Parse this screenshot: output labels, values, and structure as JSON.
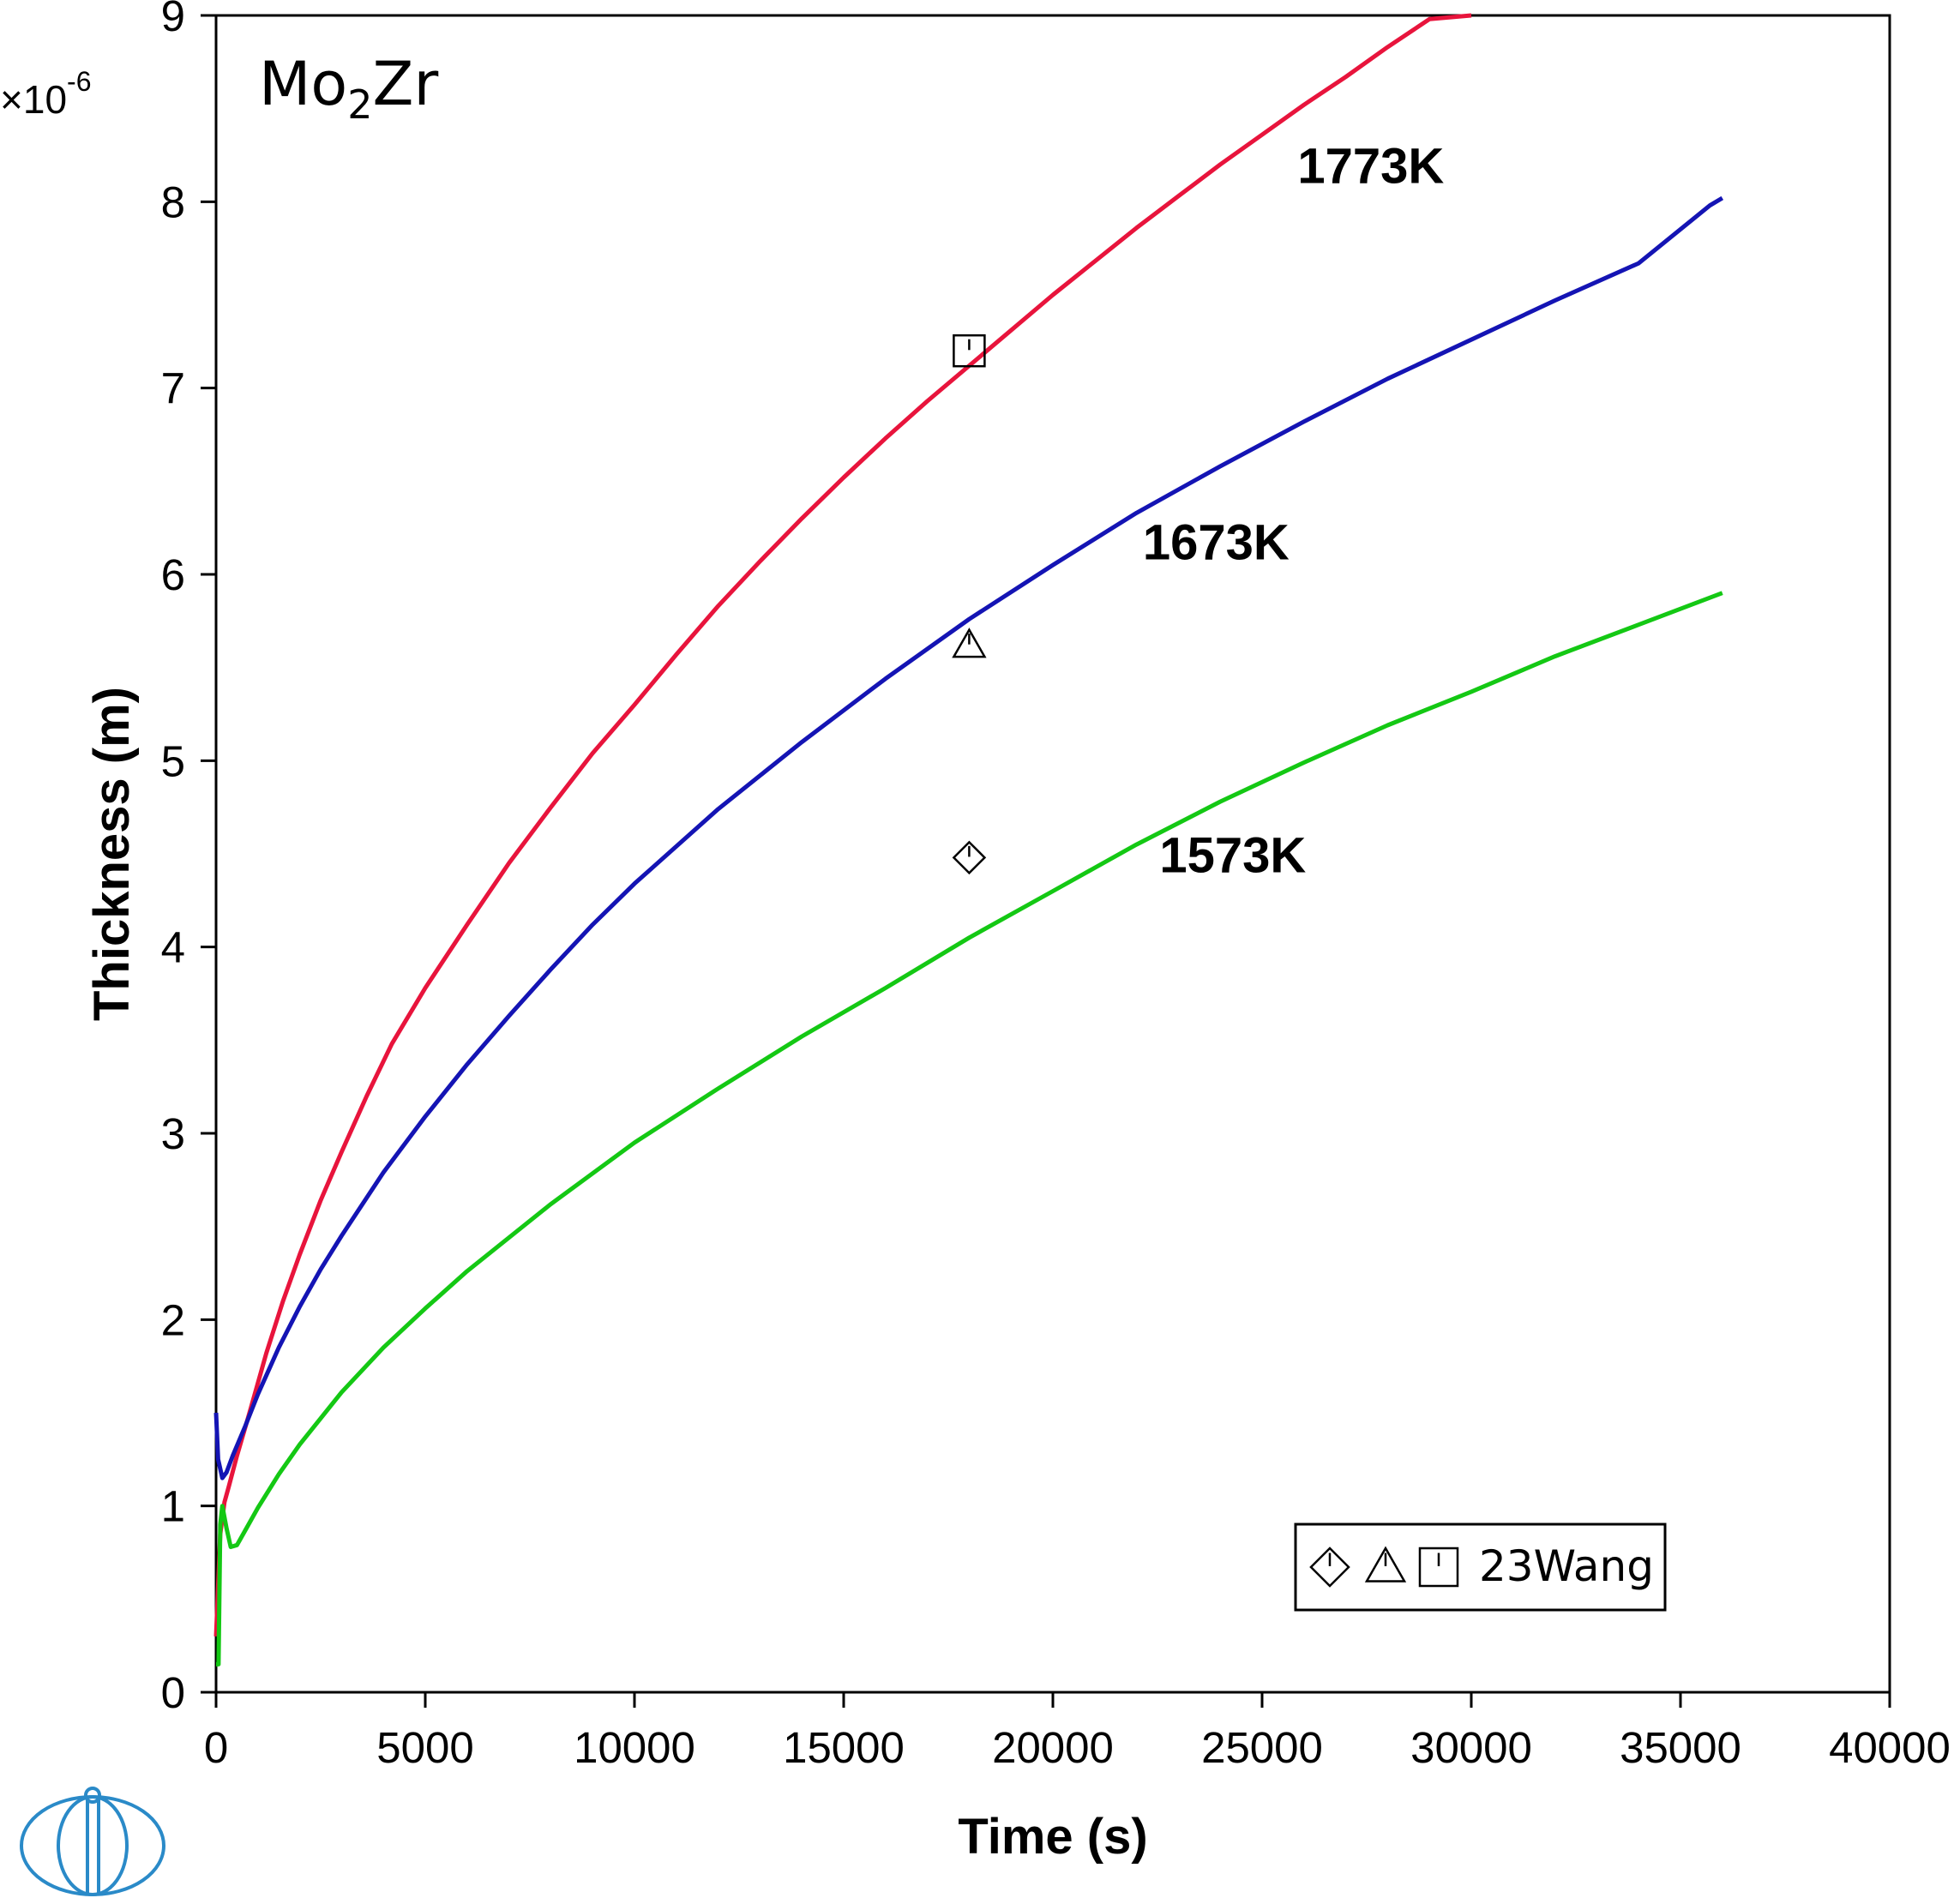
{
  "chart_data": {
    "type": "line",
    "title": "Mo2Zr",
    "title_parts": {
      "base": "Mo",
      "sub": "2",
      "rest": "Zr"
    },
    "xlabel": "Time (s)",
    "ylabel": "Thickness (m)",
    "y_multiplier": "×10",
    "y_multiplier_exp": "-6",
    "xlim": [
      0,
      40000
    ],
    "ylim": [
      0,
      9
    ],
    "x_ticks": [
      "0",
      "5000",
      "10000",
      "15000",
      "20000",
      "25000",
      "30000",
      "35000",
      "40000"
    ],
    "y_ticks": [
      "0",
      "1",
      "2",
      "3",
      "4",
      "5",
      "6",
      "7",
      "8",
      "9"
    ],
    "grid": false,
    "series": [
      {
        "name": "1773K",
        "color": "#e8143c",
        "x": [
          0,
          100,
          200,
          300,
          500,
          800,
          1200,
          1600,
          2000,
          2500,
          3000,
          3600,
          4200,
          5000,
          6000,
          7000,
          8000,
          9000,
          10000,
          11000,
          12000,
          13000,
          14000,
          15000,
          16000,
          17000,
          18000,
          19000,
          20000,
          21000,
          22000,
          23000,
          24000,
          25000,
          26000,
          27000,
          28000,
          29000,
          30000
        ],
        "y": [
          0.3,
          0.85,
          1.02,
          1.1,
          1.27,
          1.5,
          1.82,
          2.1,
          2.35,
          2.64,
          2.9,
          3.2,
          3.48,
          3.78,
          4.12,
          4.45,
          4.75,
          5.04,
          5.3,
          5.57,
          5.83,
          6.07,
          6.3,
          6.52,
          6.73,
          6.93,
          7.12,
          7.31,
          7.5,
          7.68,
          7.86,
          8.03,
          8.2,
          8.36,
          8.52,
          8.67,
          8.83,
          8.98,
          9.0
        ]
      },
      {
        "name": "1673K",
        "color": "#1414b4",
        "x": [
          0,
          50,
          150,
          250,
          400,
          700,
          1000,
          1500,
          2000,
          2500,
          3000,
          4000,
          5000,
          6000,
          7000,
          8000,
          9000,
          10000,
          12000,
          14000,
          16000,
          18000,
          20000,
          22000,
          24000,
          26000,
          28000,
          30000,
          32000,
          34000,
          35700,
          36000
        ],
        "y": [
          1.5,
          1.25,
          1.15,
          1.18,
          1.27,
          1.43,
          1.6,
          1.85,
          2.07,
          2.27,
          2.45,
          2.79,
          3.09,
          3.37,
          3.63,
          3.88,
          4.12,
          4.34,
          4.74,
          5.1,
          5.44,
          5.76,
          6.05,
          6.33,
          6.58,
          6.82,
          7.05,
          7.26,
          7.47,
          7.67,
          7.98,
          8.02
        ]
      },
      {
        "name": "1573K",
        "color": "#14c814",
        "x": [
          0,
          60,
          100,
          150,
          250,
          350,
          500,
          700,
          1000,
          1500,
          2000,
          3000,
          4000,
          5000,
          6000,
          8000,
          10000,
          12000,
          14000,
          16000,
          18000,
          20000,
          22000,
          24000,
          26000,
          28000,
          30000,
          32000,
          34000,
          36000
        ],
        "y": [
          0.15,
          0.15,
          0.9,
          1.0,
          0.88,
          0.78,
          0.79,
          0.87,
          0.99,
          1.17,
          1.33,
          1.61,
          1.85,
          2.06,
          2.26,
          2.62,
          2.95,
          3.24,
          3.52,
          3.78,
          4.05,
          4.3,
          4.55,
          4.78,
          4.99,
          5.19,
          5.37,
          5.56,
          5.73,
          5.9
        ]
      }
    ],
    "experimental_points": [
      {
        "marker": "square",
        "x": 18000,
        "y": 7.2
      },
      {
        "marker": "triangle",
        "x": 18000,
        "y": 5.62
      },
      {
        "marker": "diamond",
        "x": 18000,
        "y": 4.48
      }
    ],
    "series_labels": [
      {
        "text": "1773K",
        "x": 27600,
        "y": 8.1
      },
      {
        "text": "1673K",
        "x": 23900,
        "y": 6.08
      },
      {
        "text": "1573K",
        "x": 24300,
        "y": 4.4
      }
    ],
    "legend": {
      "text": "23Wang",
      "markers": [
        "diamond",
        "triangle",
        "square"
      ],
      "position": "bottom-right"
    }
  },
  "logo_icon": "thermo-calc-logo-icon"
}
